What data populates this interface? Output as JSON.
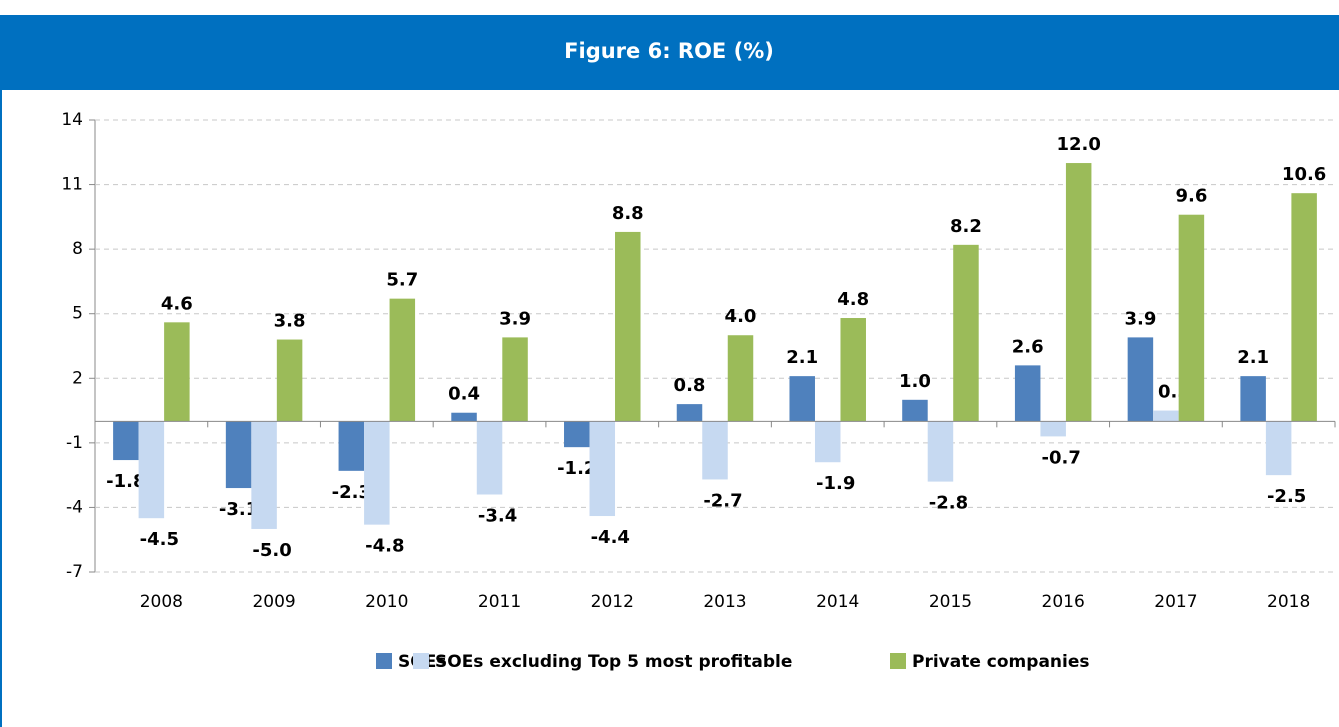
{
  "chart_data": {
    "type": "bar",
    "title": "Figure 6: ROE (%)",
    "categories": [
      "2008",
      "2009",
      "2010",
      "2011",
      "2012",
      "2013",
      "2014",
      "2015",
      "2016",
      "2017",
      "2018"
    ],
    "series": [
      {
        "name": "SOEs",
        "color": "#4f81bd",
        "values": [
          -1.8,
          -3.1,
          -2.3,
          0.4,
          -1.2,
          0.8,
          2.1,
          1.0,
          2.6,
          3.9,
          2.1
        ],
        "value_labels": [
          "-1.8",
          "-3.1",
          "-2.3",
          "0.4",
          "-1.2",
          "0.8",
          "2.1",
          "1.0",
          "2.6",
          "3.9",
          "2.1"
        ]
      },
      {
        "name": "SOEs excluding Top 5 most profitable",
        "color": "#c6d9f1",
        "values": [
          -4.5,
          -5.0,
          -4.8,
          -3.4,
          -4.4,
          -2.7,
          -1.9,
          -2.8,
          -0.7,
          0.5,
          -2.5
        ],
        "value_labels": [
          "-4.5",
          "-5.0",
          "-4.8",
          "-3.4",
          "-4.4",
          "-2.7",
          "-1.9",
          "-2.8",
          "-0.7",
          "0.5",
          "-2.5"
        ]
      },
      {
        "name": "Private companies",
        "color": "#9bbb59",
        "values": [
          4.6,
          3.8,
          5.7,
          3.9,
          8.8,
          4.0,
          4.8,
          8.2,
          12.0,
          9.6,
          10.6
        ],
        "value_labels": [
          "4.6",
          "3.8",
          "5.7",
          "3.9",
          "8.8",
          "4.0",
          "4.8",
          "8.2",
          "12.0",
          "9.6",
          "10.6"
        ]
      }
    ],
    "ylim": [
      -7,
      14
    ],
    "yticks": [
      14,
      11,
      8,
      5,
      2,
      -1,
      -4,
      -7
    ],
    "grid": true
  }
}
